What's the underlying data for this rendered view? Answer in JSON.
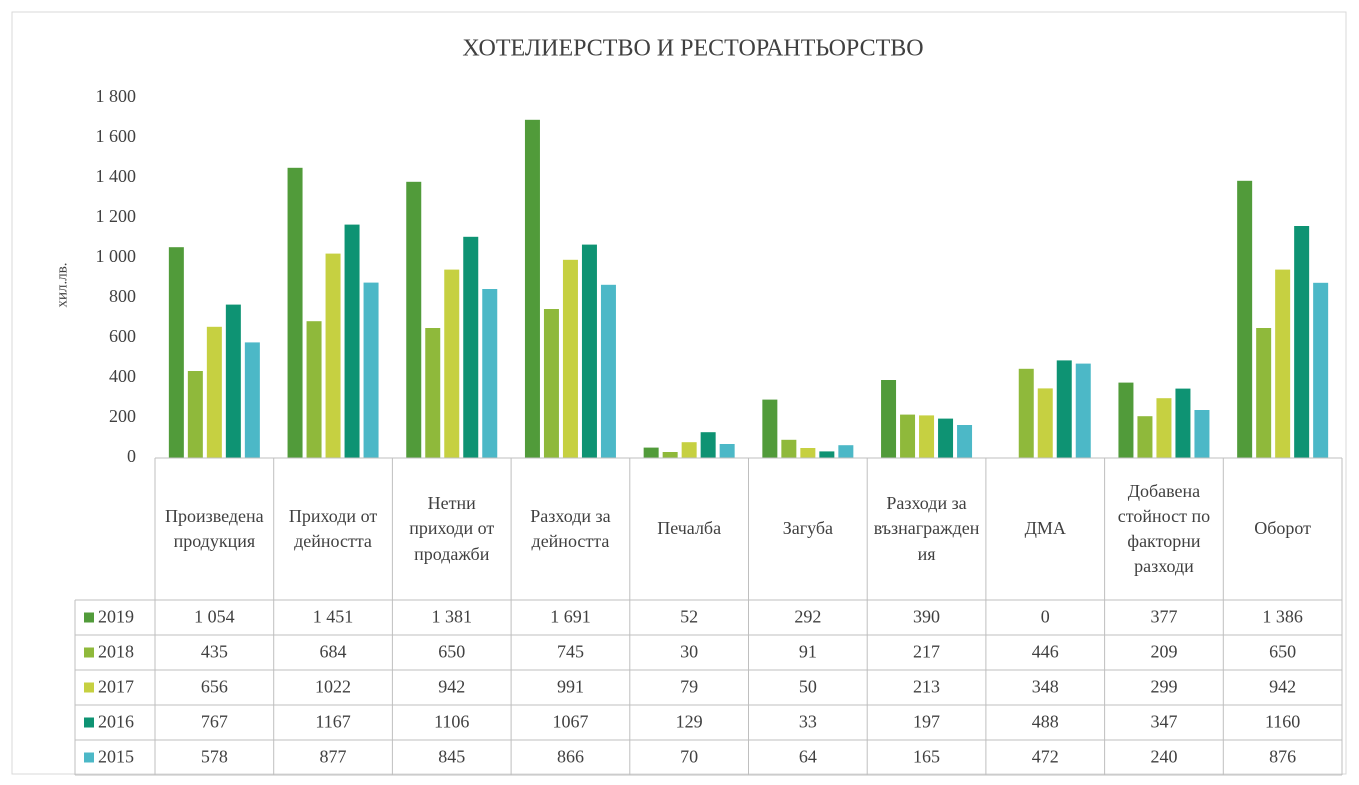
{
  "chart_data": {
    "type": "bar",
    "title": "ХОТЕЛИЕРСТВО И РЕСТОРАНТЬОРСТВО",
    "y_label": "хил.лв.",
    "categories": [
      "Произведена продукция",
      "Приходи от дейността",
      "Нетни приходи от продажби",
      "Разходи за дейността",
      "Печалба",
      "Загуба",
      "Разходи за възнаграждения",
      "ДМА",
      "Добавена стойност по факторни разходи",
      "Оборот"
    ],
    "series": [
      {
        "name": "2019",
        "color": "#519b3a",
        "values": [
          1054,
          1451,
          1381,
          1691,
          52,
          292,
          390,
          0,
          377,
          1386
        ],
        "value_labels": [
          "1 054",
          "1 451",
          "1 381",
          "1 691",
          "52",
          "292",
          "390",
          "0",
          "377",
          "1 386"
        ]
      },
      {
        "name": "2018",
        "color": "#8fb93b",
        "values": [
          435,
          684,
          650,
          745,
          30,
          91,
          217,
          446,
          209,
          650
        ]
      },
      {
        "name": "2017",
        "color": "#c6d041",
        "values": [
          656,
          1022,
          942,
          991,
          79,
          50,
          213,
          348,
          299,
          942
        ]
      },
      {
        "name": "2016",
        "color": "#0e9373",
        "values": [
          767,
          1167,
          1106,
          1067,
          129,
          33,
          197,
          488,
          347,
          1160
        ]
      },
      {
        "name": "2015",
        "color": "#4cb8c7",
        "values": [
          578,
          877,
          845,
          866,
          70,
          64,
          165,
          472,
          240,
          876
        ]
      }
    ],
    "ylim": [
      0,
      1800
    ],
    "yticks": [
      0,
      200,
      400,
      600,
      800,
      {
        "value": 1000,
        "label": "1 000"
      },
      {
        "value": 1200,
        "label": "1 200"
      },
      {
        "value": 1400,
        "label": "1 400"
      },
      {
        "value": 1600,
        "label": "1 600"
      },
      {
        "value": 1800,
        "label": "1 800"
      }
    ]
  }
}
